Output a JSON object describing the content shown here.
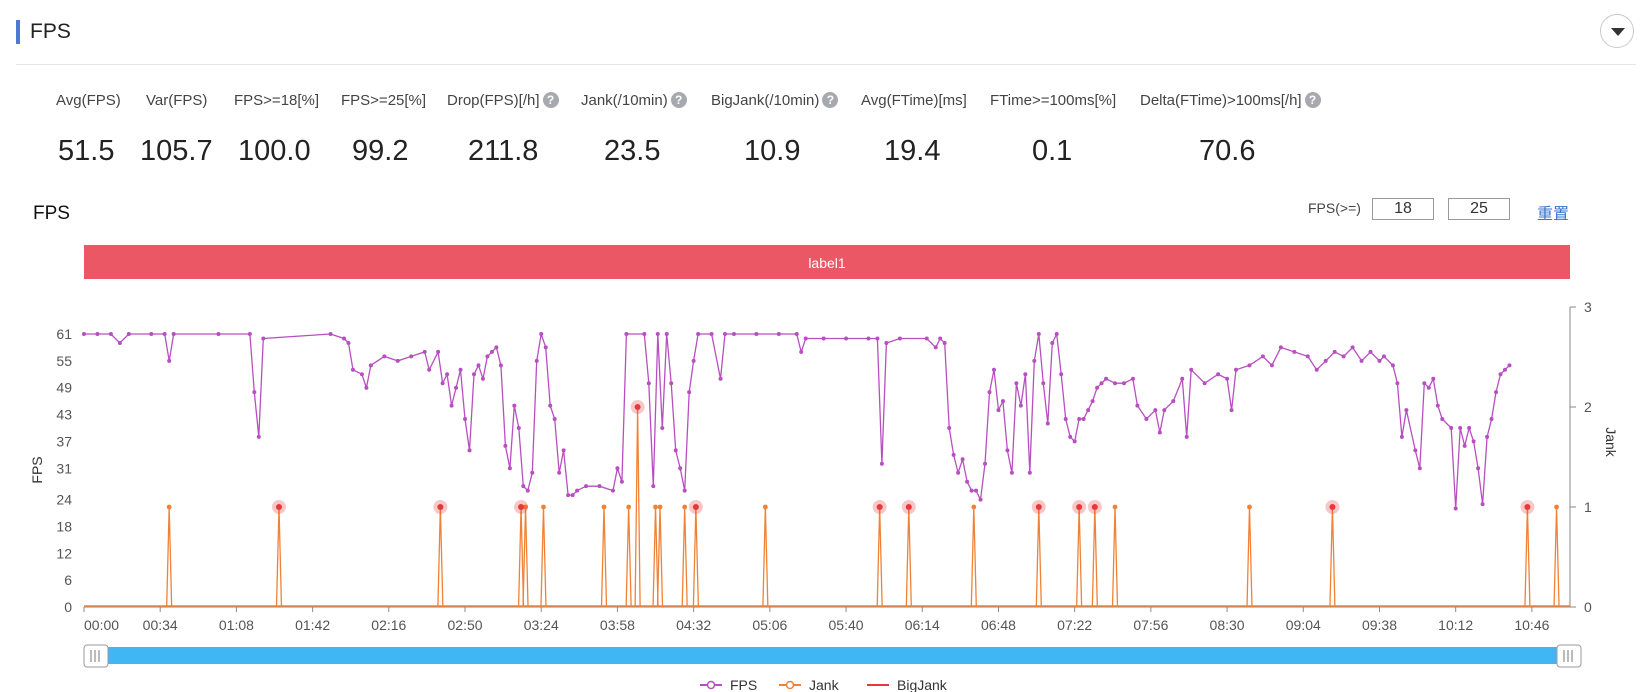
{
  "header": {
    "title": "FPS"
  },
  "metrics": [
    {
      "label": "Avg(FPS)",
      "value": "51.5",
      "help": false
    },
    {
      "label": "Var(FPS)",
      "value": "105.7",
      "help": false
    },
    {
      "label": "FPS>=18[%]",
      "value": "100.0",
      "help": false
    },
    {
      "label": "FPS>=25[%]",
      "value": "99.2",
      "help": false
    },
    {
      "label": "Drop(FPS)[/h]",
      "value": "211.8",
      "help": true
    },
    {
      "label": "Jank(/10min)",
      "value": "23.5",
      "help": true
    },
    {
      "label": "BigJank(/10min)",
      "value": "10.9",
      "help": true
    },
    {
      "label": "Avg(FTime)[ms]",
      "value": "19.4",
      "help": false
    },
    {
      "label": "FTime>=100ms[%]",
      "value": "0.1",
      "help": false
    },
    {
      "label": "Delta(FTime)>100ms[/h]",
      "value": "70.6",
      "help": true
    }
  ],
  "chart_title": "FPS",
  "controls": {
    "fps_label": "FPS(>=)",
    "threshold_low": "18",
    "threshold_high": "25",
    "reset_label": "重置"
  },
  "icons": {
    "collapse": "chevron-down-icon",
    "help": "question-circle-icon",
    "slider_handle": "grip-icon"
  },
  "colors": {
    "fps": "#b84fc0",
    "jank": "#f08236",
    "bigjank": "#e53a3a",
    "label_band": "#ec5766",
    "slider": "#41b6f5",
    "accent": "#4a7bd0"
  },
  "chart_data": {
    "type": "line",
    "x_ticks": [
      "00:00",
      "00:34",
      "01:08",
      "01:42",
      "02:16",
      "02:50",
      "03:24",
      "03:58",
      "04:32",
      "05:06",
      "05:40",
      "06:14",
      "06:48",
      "07:22",
      "07:56",
      "08:30",
      "09:04",
      "09:38",
      "10:12",
      "10:46"
    ],
    "x_range_seconds": [
      0,
      663
    ],
    "y_left": {
      "label": "FPS",
      "ticks": [
        0,
        6,
        12,
        18,
        24,
        31,
        37,
        43,
        49,
        55,
        61
      ],
      "range": [
        0,
        61
      ]
    },
    "y_right": {
      "label": "Jank",
      "ticks": [
        0,
        1,
        2,
        3
      ],
      "range": [
        0,
        3
      ]
    },
    "label_band": {
      "text": "label1"
    },
    "legend": {
      "position": "bottom-center",
      "items": [
        "FPS",
        "Jank",
        "BigJank"
      ]
    },
    "series": [
      {
        "name": "FPS",
        "axis": "left",
        "points": [
          [
            0,
            61
          ],
          [
            6,
            61
          ],
          [
            12,
            61
          ],
          [
            16,
            59
          ],
          [
            20,
            61
          ],
          [
            30,
            61
          ],
          [
            36,
            61
          ],
          [
            38,
            55
          ],
          [
            40,
            61
          ],
          [
            60,
            61
          ],
          [
            74,
            61
          ],
          [
            76,
            48
          ],
          [
            78,
            38
          ],
          [
            80,
            60
          ],
          [
            110,
            61
          ],
          [
            116,
            60
          ],
          [
            118,
            59
          ],
          [
            120,
            53
          ],
          [
            124,
            52
          ],
          [
            126,
            49
          ],
          [
            128,
            54
          ],
          [
            134,
            56
          ],
          [
            140,
            55
          ],
          [
            146,
            56
          ],
          [
            152,
            57
          ],
          [
            154,
            53
          ],
          [
            158,
            57
          ],
          [
            160,
            50
          ],
          [
            162,
            52
          ],
          [
            164,
            45
          ],
          [
            166,
            49
          ],
          [
            168,
            53
          ],
          [
            170,
            42
          ],
          [
            172,
            35
          ],
          [
            174,
            52
          ],
          [
            176,
            54
          ],
          [
            178,
            51
          ],
          [
            180,
            56
          ],
          [
            182,
            57
          ],
          [
            184,
            58
          ],
          [
            186,
            54
          ],
          [
            188,
            36
          ],
          [
            190,
            31
          ],
          [
            192,
            45
          ],
          [
            194,
            40
          ],
          [
            196,
            27
          ],
          [
            198,
            26
          ],
          [
            200,
            30
          ],
          [
            202,
            55
          ],
          [
            204,
            61
          ],
          [
            206,
            58
          ],
          [
            208,
            45
          ],
          [
            210,
            42
          ],
          [
            212,
            30
          ],
          [
            214,
            35
          ],
          [
            216,
            25
          ],
          [
            218,
            25
          ],
          [
            220,
            26
          ],
          [
            224,
            27
          ],
          [
            230,
            27
          ],
          [
            236,
            26
          ],
          [
            238,
            31
          ],
          [
            240,
            28
          ],
          [
            242,
            61
          ],
          [
            250,
            61
          ],
          [
            252,
            50
          ],
          [
            254,
            27
          ],
          [
            256,
            61
          ],
          [
            258,
            40
          ],
          [
            260,
            61
          ],
          [
            262,
            50
          ],
          [
            264,
            35
          ],
          [
            266,
            31
          ],
          [
            268,
            26
          ],
          [
            270,
            48
          ],
          [
            272,
            55
          ],
          [
            274,
            61
          ],
          [
            280,
            61
          ],
          [
            284,
            51
          ],
          [
            286,
            61
          ],
          [
            290,
            61
          ],
          [
            300,
            61
          ],
          [
            310,
            61
          ],
          [
            318,
            61
          ],
          [
            320,
            57
          ],
          [
            322,
            60
          ],
          [
            330,
            60
          ],
          [
            340,
            60
          ],
          [
            350,
            60
          ],
          [
            354,
            60
          ],
          [
            356,
            32
          ],
          [
            358,
            59
          ],
          [
            364,
            60
          ],
          [
            376,
            60
          ],
          [
            380,
            58
          ],
          [
            382,
            60
          ],
          [
            384,
            59
          ],
          [
            386,
            40
          ],
          [
            388,
            34
          ],
          [
            390,
            30
          ],
          [
            392,
            33
          ],
          [
            394,
            28
          ],
          [
            396,
            26
          ],
          [
            398,
            26
          ],
          [
            400,
            24
          ],
          [
            402,
            32
          ],
          [
            404,
            48
          ],
          [
            406,
            53
          ],
          [
            408,
            44
          ],
          [
            410,
            46
          ],
          [
            412,
            35
          ],
          [
            414,
            30
          ],
          [
            416,
            50
          ],
          [
            418,
            45
          ],
          [
            420,
            52
          ],
          [
            422,
            30
          ],
          [
            424,
            55
          ],
          [
            426,
            61
          ],
          [
            428,
            50
          ],
          [
            430,
            41
          ],
          [
            432,
            59
          ],
          [
            434,
            61
          ],
          [
            436,
            52
          ],
          [
            438,
            42
          ],
          [
            440,
            38
          ],
          [
            442,
            37
          ],
          [
            444,
            42
          ],
          [
            446,
            42
          ],
          [
            448,
            44
          ],
          [
            450,
            46
          ],
          [
            452,
            49
          ],
          [
            454,
            50
          ],
          [
            456,
            51
          ],
          [
            460,
            50
          ],
          [
            464,
            50
          ],
          [
            468,
            51
          ],
          [
            470,
            45
          ],
          [
            474,
            42
          ],
          [
            478,
            44
          ],
          [
            480,
            39
          ],
          [
            482,
            44
          ],
          [
            486,
            46
          ],
          [
            490,
            51
          ],
          [
            492,
            38
          ],
          [
            494,
            53
          ],
          [
            500,
            50
          ],
          [
            506,
            52
          ],
          [
            510,
            51
          ],
          [
            512,
            44
          ],
          [
            514,
            53
          ],
          [
            520,
            54
          ],
          [
            526,
            56
          ],
          [
            530,
            54
          ],
          [
            534,
            58
          ],
          [
            540,
            57
          ],
          [
            546,
            56
          ],
          [
            550,
            53
          ],
          [
            554,
            55
          ],
          [
            558,
            57
          ],
          [
            562,
            56
          ],
          [
            566,
            58
          ],
          [
            570,
            55
          ],
          [
            574,
            57
          ],
          [
            578,
            55
          ],
          [
            580,
            56
          ],
          [
            584,
            54
          ],
          [
            586,
            50
          ],
          [
            588,
            38
          ],
          [
            590,
            44
          ],
          [
            594,
            35
          ],
          [
            596,
            31
          ],
          [
            598,
            50
          ],
          [
            600,
            49
          ],
          [
            602,
            51
          ],
          [
            604,
            45
          ],
          [
            606,
            42
          ],
          [
            610,
            40
          ],
          [
            612,
            22
          ],
          [
            614,
            40
          ],
          [
            616,
            36
          ],
          [
            618,
            40
          ],
          [
            620,
            37
          ],
          [
            622,
            31
          ],
          [
            624,
            23
          ],
          [
            626,
            38
          ],
          [
            628,
            42
          ],
          [
            630,
            48
          ],
          [
            632,
            52
          ],
          [
            634,
            53
          ],
          [
            636,
            54
          ]
        ]
      },
      {
        "name": "Jank",
        "axis": "right",
        "spikes": [
          [
            38,
            1
          ],
          [
            87,
            1
          ],
          [
            159,
            1
          ],
          [
            195,
            1
          ],
          [
            197,
            1
          ],
          [
            205,
            1
          ],
          [
            232,
            1
          ],
          [
            243,
            1
          ],
          [
            247,
            2
          ],
          [
            255,
            1
          ],
          [
            257,
            1
          ],
          [
            268,
            1
          ],
          [
            273,
            1
          ],
          [
            304,
            1
          ],
          [
            355,
            1
          ],
          [
            368,
            1
          ],
          [
            397,
            1
          ],
          [
            426,
            1
          ],
          [
            444,
            1
          ],
          [
            451,
            1
          ],
          [
            460,
            1
          ],
          [
            520,
            1
          ],
          [
            557,
            1
          ],
          [
            644,
            1
          ],
          [
            657,
            1
          ]
        ]
      },
      {
        "name": "BigJank",
        "axis": "right",
        "markers": [
          [
            87,
            1
          ],
          [
            159,
            1
          ],
          [
            195,
            1
          ],
          [
            247,
            2
          ],
          [
            273,
            1
          ],
          [
            355,
            1
          ],
          [
            368,
            1
          ],
          [
            426,
            1
          ],
          [
            444,
            1
          ],
          [
            451,
            1
          ],
          [
            557,
            1
          ],
          [
            644,
            1
          ]
        ]
      }
    ]
  }
}
